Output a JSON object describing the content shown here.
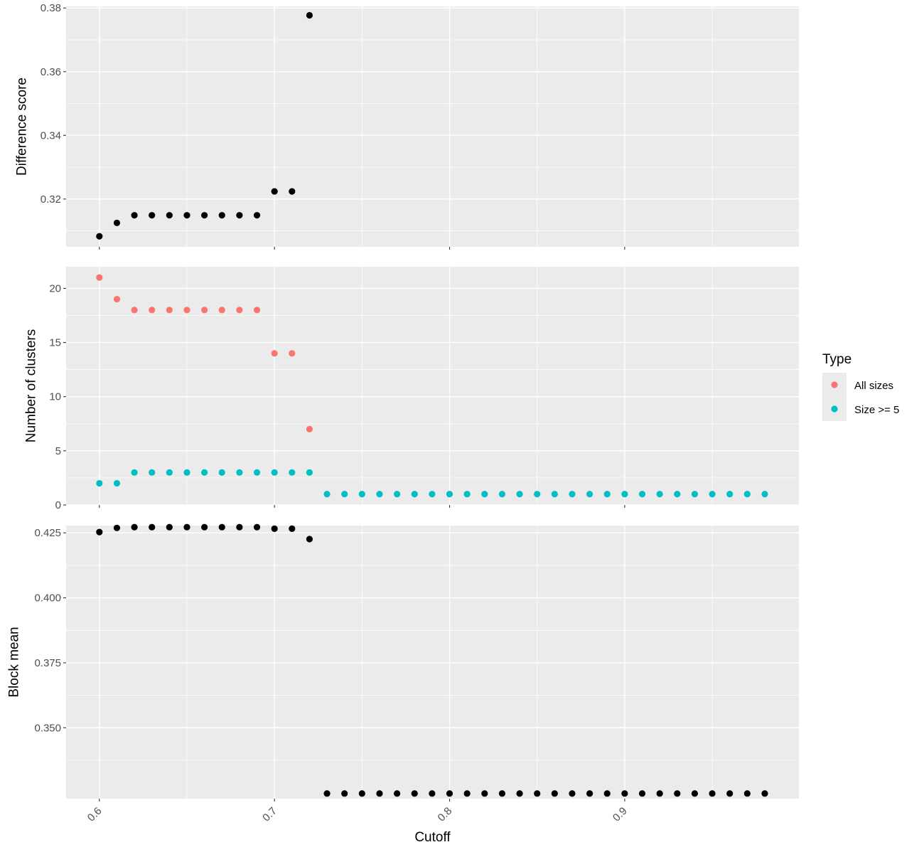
{
  "chart_data": [
    {
      "type": "scatter",
      "ylabel": "Difference score",
      "ylim": [
        0.305,
        0.3805
      ],
      "yticks": [
        {
          "value": 0.32,
          "label": "0.32"
        },
        {
          "value": 0.34,
          "label": "0.34"
        },
        {
          "value": 0.36,
          "label": "0.36"
        },
        {
          "value": 0.38,
          "label": "0.38"
        }
      ],
      "series": [
        {
          "color": "#000000",
          "x": [
            0.6,
            0.61,
            0.62,
            0.63,
            0.64,
            0.65,
            0.66,
            0.67,
            0.68,
            0.69,
            0.7,
            0.71,
            0.72
          ],
          "y": [
            0.3083,
            0.3125,
            0.3149,
            0.3149,
            0.3149,
            0.3149,
            0.3149,
            0.3149,
            0.3149,
            0.3149,
            0.3224,
            0.3224,
            0.3777
          ]
        }
      ]
    },
    {
      "type": "scatter",
      "ylabel": "Number of clusters",
      "ylim": [
        0,
        22
      ],
      "yticks": [
        {
          "value": 0,
          "label": "0"
        },
        {
          "value": 5,
          "label": "5"
        },
        {
          "value": 10,
          "label": "10"
        },
        {
          "value": 15,
          "label": "15"
        },
        {
          "value": 20,
          "label": "20"
        }
      ],
      "series": [
        {
          "name": "All sizes",
          "color": "#F8766D",
          "x": [
            0.6,
            0.61,
            0.62,
            0.63,
            0.64,
            0.65,
            0.66,
            0.67,
            0.68,
            0.69,
            0.7,
            0.71,
            0.72
          ],
          "y": [
            21,
            19,
            18,
            18,
            18,
            18,
            18,
            18,
            18,
            18,
            14,
            14,
            7
          ]
        },
        {
          "name": "Size >= 5",
          "color": "#00BFC4",
          "x": [
            0.6,
            0.61,
            0.62,
            0.63,
            0.64,
            0.65,
            0.66,
            0.67,
            0.68,
            0.69,
            0.7,
            0.71,
            0.72,
            0.73,
            0.74,
            0.75,
            0.76,
            0.77,
            0.78,
            0.79,
            0.8,
            0.81,
            0.82,
            0.83,
            0.84,
            0.85,
            0.86,
            0.87,
            0.88,
            0.89,
            0.9,
            0.91,
            0.92,
            0.93,
            0.94,
            0.95,
            0.96,
            0.97,
            0.98
          ],
          "y": [
            2,
            2,
            3,
            3,
            3,
            3,
            3,
            3,
            3,
            3,
            3,
            3,
            3,
            1,
            1,
            1,
            1,
            1,
            1,
            1,
            1,
            1,
            1,
            1,
            1,
            1,
            1,
            1,
            1,
            1,
            1,
            1,
            1,
            1,
            1,
            1,
            1,
            1,
            1
          ]
        }
      ]
    },
    {
      "type": "scatter",
      "ylabel": "Block mean",
      "xlabel": "Cutoff",
      "ylim": [
        0.3227,
        0.4278
      ],
      "yticks": [
        {
          "value": 0.35,
          "label": "0.350"
        },
        {
          "value": 0.375,
          "label": "0.375"
        },
        {
          "value": 0.4,
          "label": "0.400"
        },
        {
          "value": 0.425,
          "label": "0.425"
        }
      ],
      "series": [
        {
          "color": "#000000",
          "x": [
            0.6,
            0.61,
            0.62,
            0.63,
            0.64,
            0.65,
            0.66,
            0.67,
            0.68,
            0.69,
            0.7,
            0.71,
            0.72,
            0.73,
            0.74,
            0.75,
            0.76,
            0.77,
            0.78,
            0.79,
            0.8,
            0.81,
            0.82,
            0.83,
            0.84,
            0.85,
            0.86,
            0.87,
            0.88,
            0.89,
            0.9,
            0.91,
            0.92,
            0.93,
            0.94,
            0.95,
            0.96,
            0.97,
            0.98
          ],
          "y": [
            0.4253,
            0.4269,
            0.4272,
            0.4272,
            0.4272,
            0.4272,
            0.4272,
            0.4272,
            0.4272,
            0.4272,
            0.4266,
            0.4266,
            0.4226,
            0.3247,
            0.3247,
            0.3247,
            0.3247,
            0.3247,
            0.3247,
            0.3247,
            0.3247,
            0.3247,
            0.3247,
            0.3247,
            0.3247,
            0.3247,
            0.3247,
            0.3247,
            0.3247,
            0.3247,
            0.3247,
            0.3247,
            0.3247,
            0.3247,
            0.3247,
            0.3247,
            0.3247,
            0.3247,
            0.3247
          ]
        }
      ]
    }
  ],
  "x_axis": {
    "title": "Cutoff",
    "xlim": [
      0.581,
      0.9995
    ],
    "ticks": [
      {
        "value": 0.6,
        "label": "0.6"
      },
      {
        "value": 0.7,
        "label": "0.7"
      },
      {
        "value": 0.8,
        "label": "0.8"
      },
      {
        "value": 0.9,
        "label": "0.9"
      }
    ],
    "tick_rotation_deg": -45
  },
  "legend": {
    "title": "Type",
    "placement": "right",
    "items": [
      {
        "label": "All sizes",
        "color": "#F8766D"
      },
      {
        "label": "Size >= 5",
        "color": "#00BFC4"
      }
    ]
  },
  "colors": {
    "panel_background": "#EBEBEB",
    "grid_major": "#FFFFFF",
    "point_default": "#000000"
  }
}
